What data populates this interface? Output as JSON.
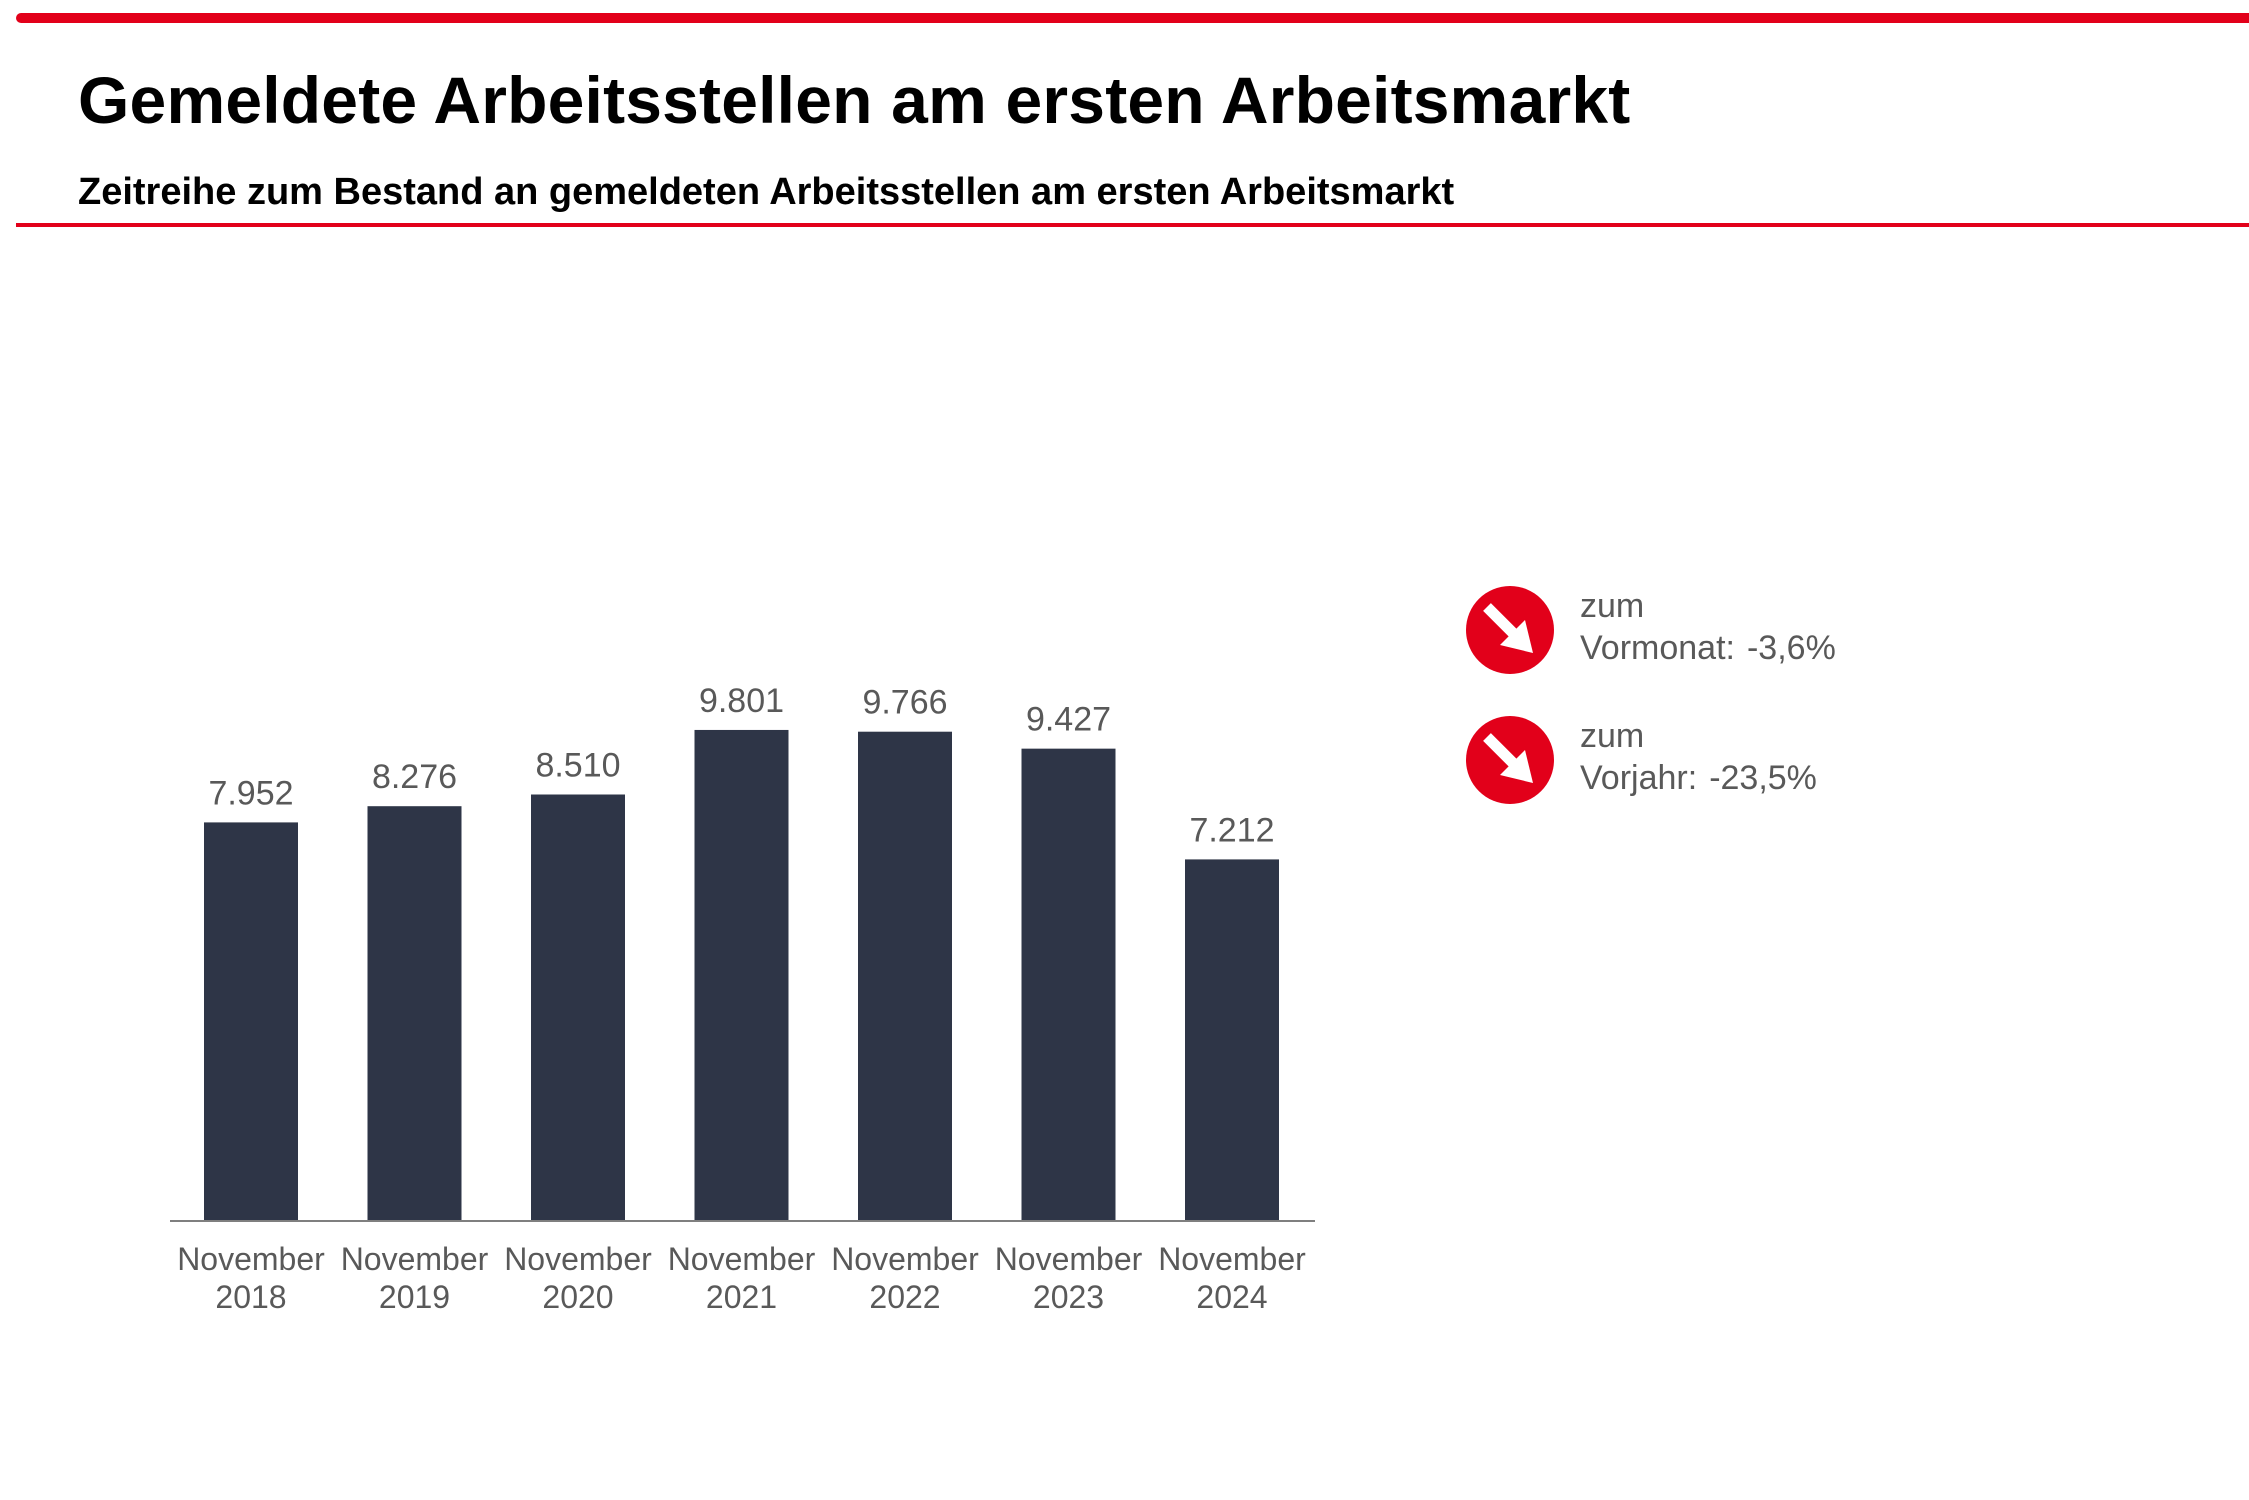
{
  "header": {
    "title": "Gemeldete Arbeitsstellen am ersten Arbeitsmarkt",
    "subtitle": "Zeitreihe zum Bestand an gemeldeten Arbeitsstellen am ersten Arbeitsmarkt"
  },
  "chart_data": {
    "type": "bar",
    "title": "Gemeldete Arbeitsstellen am ersten Arbeitsmarkt",
    "subtitle": "Zeitreihe zum Bestand an gemeldeten Arbeitsstellen am ersten Arbeitsmarkt",
    "categories": [
      [
        "November",
        "2018"
      ],
      [
        "November",
        "2019"
      ],
      [
        "November",
        "2020"
      ],
      [
        "November",
        "2021"
      ],
      [
        "November",
        "2022"
      ],
      [
        "November",
        "2023"
      ],
      [
        "November",
        "2024"
      ]
    ],
    "values": [
      7952,
      8276,
      8510,
      9801,
      9766,
      9427,
      7212
    ],
    "value_labels": [
      "7.952",
      "8.276",
      "8.510",
      "9.801",
      "9.766",
      "9.427",
      "7.212"
    ],
    "xlabel": "",
    "ylabel": "",
    "ylim": [
      0,
      10500
    ],
    "grid": false,
    "bar_color": "#2e3547"
  },
  "indicators": [
    {
      "line1": "zum",
      "label": "Vormonat:",
      "value": "-3,6%",
      "icon": "arrow-down-right-icon",
      "color": "#e2001a"
    },
    {
      "line1": "zum",
      "label": "Vorjahr:",
      "value": "-23,5%",
      "icon": "arrow-down-right-icon",
      "color": "#e2001a"
    }
  ],
  "colors": {
    "accent": "#e2001a",
    "bar": "#2e3547",
    "label": "#595959"
  }
}
